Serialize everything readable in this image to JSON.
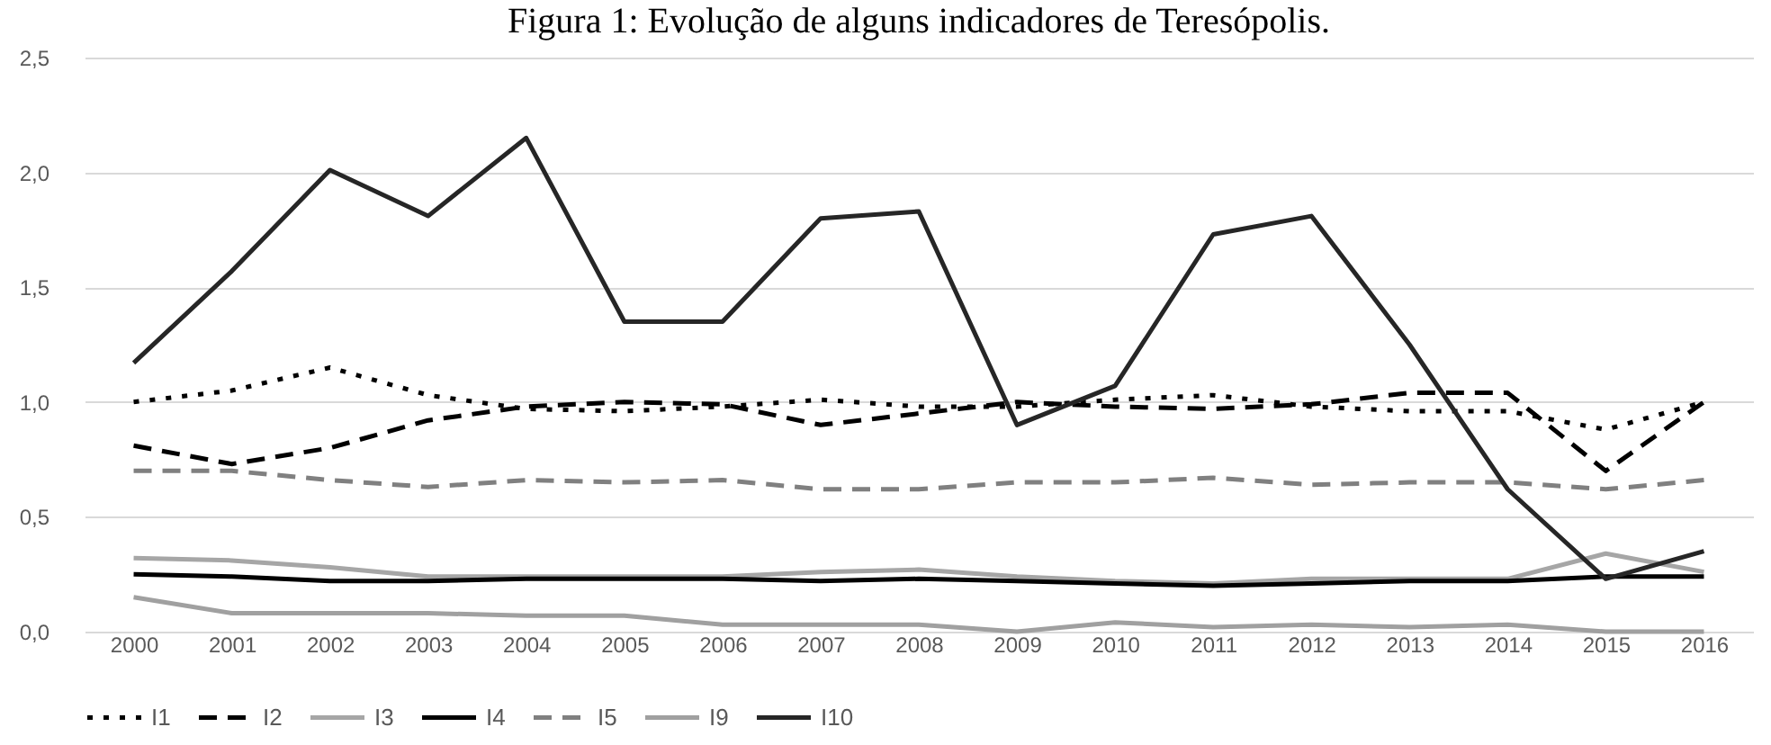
{
  "chart_data": {
    "type": "line",
    "title": "Figura 1: Evolução de alguns indicadores de Teresópolis.",
    "categories": [
      "2000",
      "2001",
      "2002",
      "2003",
      "2004",
      "2005",
      "2006",
      "2007",
      "2008",
      "2009",
      "2010",
      "2011",
      "2012",
      "2013",
      "2014",
      "2015",
      "2016"
    ],
    "ylim": [
      0,
      2.5
    ],
    "yticks": [
      {
        "value": 0,
        "label": "0,0"
      },
      {
        "value": 0.5,
        "label": "0,5"
      },
      {
        "value": 1,
        "label": "1,0"
      },
      {
        "value": 1.5,
        "label": "1,5"
      },
      {
        "value": 2,
        "label": "2,0"
      },
      {
        "value": 2.5,
        "label": "2,5"
      }
    ],
    "grid": "y",
    "legend": "bottom",
    "marker": "none",
    "series": [
      {
        "name": "I1",
        "color": "#000000",
        "line_style": "dotted",
        "values": [
          1.0,
          1.05,
          1.15,
          1.03,
          0.97,
          0.96,
          0.98,
          1.01,
          0.98,
          0.98,
          1.01,
          1.03,
          0.98,
          0.96,
          0.96,
          0.88,
          1.0
        ]
      },
      {
        "name": "I2",
        "color": "#000000",
        "line_style": "dashed",
        "values": [
          0.81,
          0.73,
          0.8,
          0.92,
          0.98,
          1.0,
          0.99,
          0.9,
          0.95,
          1.0,
          0.98,
          0.97,
          0.99,
          1.04,
          1.04,
          0.7,
          1.0
        ]
      },
      {
        "name": "I3",
        "color": "#a6a6a6",
        "line_style": "solid",
        "values": [
          0.32,
          0.31,
          0.28,
          0.24,
          0.24,
          0.24,
          0.24,
          0.26,
          0.27,
          0.24,
          0.22,
          0.21,
          0.23,
          0.23,
          0.23,
          0.34,
          0.26
        ]
      },
      {
        "name": "I4",
        "color": "#000000",
        "line_style": "solid",
        "values": [
          0.25,
          0.24,
          0.22,
          0.22,
          0.23,
          0.23,
          0.23,
          0.22,
          0.23,
          0.22,
          0.21,
          0.2,
          0.21,
          0.22,
          0.22,
          0.24,
          0.24
        ]
      },
      {
        "name": "I5",
        "color": "#808080",
        "line_style": "dashed",
        "values": [
          0.7,
          0.7,
          0.66,
          0.63,
          0.66,
          0.65,
          0.66,
          0.62,
          0.62,
          0.65,
          0.65,
          0.67,
          0.64,
          0.65,
          0.65,
          0.62,
          0.66
        ]
      },
      {
        "name": "I9",
        "color": "#a0a0a0",
        "line_style": "solid",
        "values": [
          0.15,
          0.08,
          0.08,
          0.08,
          0.07,
          0.07,
          0.03,
          0.03,
          0.03,
          0.0,
          0.04,
          0.02,
          0.03,
          0.02,
          0.03,
          0.0,
          0.0
        ]
      },
      {
        "name": "I10",
        "color": "#262626",
        "line_style": "solid",
        "values": [
          1.17,
          1.57,
          2.01,
          1.81,
          2.15,
          1.35,
          1.35,
          1.8,
          1.83,
          0.9,
          1.07,
          1.73,
          1.81,
          1.25,
          0.62,
          0.23,
          0.35
        ]
      }
    ]
  }
}
